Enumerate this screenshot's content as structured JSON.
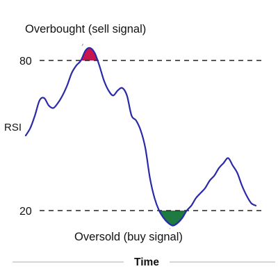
{
  "chart_data": {
    "type": "line",
    "title": "",
    "xlabel": "Time",
    "ylabel": "RSI",
    "ylim": [
      0,
      100
    ],
    "y_ticks": [
      {
        "value": 80,
        "label": "80"
      },
      {
        "value": 20,
        "label": "20"
      }
    ],
    "x_ticks": [],
    "grid": false,
    "reference_lines": [
      {
        "value": 80,
        "style": "dashed",
        "color": "#222222"
      },
      {
        "value": 20,
        "style": "dashed",
        "color": "#222222"
      }
    ],
    "series": [
      {
        "color": "#2a2aa8",
        "x": [
          0,
          2,
          4,
          6,
          8,
          10,
          12,
          14,
          16,
          18,
          20,
          22,
          24,
          26,
          28,
          30,
          32,
          34,
          36,
          38,
          40,
          42,
          44,
          46,
          48,
          50,
          52,
          54,
          56,
          58,
          60,
          62,
          64,
          66,
          68,
          70,
          72,
          74,
          76,
          78,
          80,
          82,
          84,
          86,
          88,
          90,
          92,
          94,
          96,
          98,
          100
        ],
        "values": [
          50,
          53,
          58,
          64,
          65,
          62,
          61,
          63,
          66,
          70,
          75,
          78,
          80,
          84,
          85,
          83,
          78,
          72,
          68,
          66,
          68,
          69,
          66,
          58,
          56,
          52,
          45,
          33,
          25,
          20,
          17,
          15,
          14,
          15,
          17,
          20,
          22,
          25,
          27,
          29,
          32,
          34,
          37,
          39,
          41,
          38,
          35,
          30,
          26,
          23,
          22
        ]
      }
    ],
    "shaded_regions": [
      {
        "label": "overbought",
        "above": 80,
        "color": "#c8144f"
      },
      {
        "label": "oversold",
        "below": 20,
        "color": "#1d7a41"
      }
    ],
    "annotations": [
      {
        "text": "Overbought (sell signal)",
        "target": "overbought"
      },
      {
        "text": "Oversold (buy signal)",
        "target": "oversold"
      }
    ]
  }
}
